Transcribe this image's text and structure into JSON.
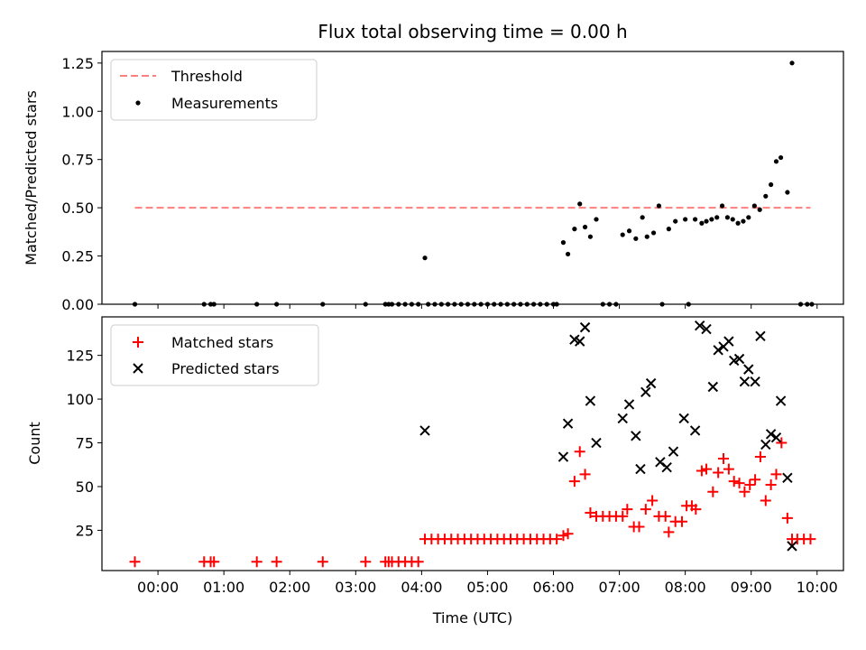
{
  "chart_data": [
    {
      "type": "scatter",
      "title": "Flux total observing time = 0.00 h",
      "xlabel": "",
      "ylabel": "Matched/Predicted stars",
      "xlim": [
        -0.85,
        10.4
      ],
      "ylim": [
        0,
        1.31
      ],
      "xticks": [
        0,
        1,
        2,
        3,
        4,
        5,
        6,
        7,
        8,
        9,
        10
      ],
      "xtick_labels": [],
      "yticks": [
        0.0,
        0.25,
        0.5,
        0.75,
        1.0,
        1.25
      ],
      "ytick_labels": [
        "0.00",
        "0.25",
        "0.50",
        "0.75",
        "1.00",
        "1.25"
      ],
      "legend": {
        "position": "top-left",
        "entries": [
          "Threshold",
          "Measurements"
        ]
      },
      "threshold": {
        "name": "Threshold",
        "color": "#ff7f7f",
        "style": "dashed",
        "x": [
          -0.35,
          9.9
        ],
        "y": 0.5
      },
      "series": [
        {
          "name": "Measurements",
          "color": "#000000",
          "marker": "dot",
          "points": [
            [
              -0.35,
              0
            ],
            [
              0.7,
              0
            ],
            [
              0.8,
              0
            ],
            [
              0.85,
              0
            ],
            [
              1.5,
              0
            ],
            [
              1.8,
              0
            ],
            [
              2.5,
              0
            ],
            [
              3.15,
              0
            ],
            [
              3.45,
              0
            ],
            [
              3.5,
              0
            ],
            [
              3.55,
              0
            ],
            [
              3.65,
              0
            ],
            [
              3.75,
              0
            ],
            [
              3.85,
              0
            ],
            [
              3.95,
              0
            ],
            [
              4.05,
              0.24
            ],
            [
              4.1,
              0
            ],
            [
              4.2,
              0
            ],
            [
              4.3,
              0
            ],
            [
              4.4,
              0
            ],
            [
              4.5,
              0
            ],
            [
              4.6,
              0
            ],
            [
              4.7,
              0
            ],
            [
              4.8,
              0
            ],
            [
              4.9,
              0
            ],
            [
              5.0,
              0
            ],
            [
              5.1,
              0
            ],
            [
              5.2,
              0
            ],
            [
              5.3,
              0
            ],
            [
              5.4,
              0
            ],
            [
              5.5,
              0
            ],
            [
              5.6,
              0
            ],
            [
              5.7,
              0
            ],
            [
              5.8,
              0
            ],
            [
              5.9,
              0
            ],
            [
              6.0,
              0
            ],
            [
              6.05,
              0
            ],
            [
              6.15,
              0.32
            ],
            [
              6.22,
              0.26
            ],
            [
              6.32,
              0.39
            ],
            [
              6.4,
              0.52
            ],
            [
              6.48,
              0.4
            ],
            [
              6.56,
              0.35
            ],
            [
              6.65,
              0.44
            ],
            [
              6.75,
              0
            ],
            [
              6.85,
              0
            ],
            [
              6.95,
              0
            ],
            [
              7.05,
              0.36
            ],
            [
              7.15,
              0.38
            ],
            [
              7.25,
              0.34
            ],
            [
              7.35,
              0.45
            ],
            [
              7.42,
              0.35
            ],
            [
              7.52,
              0.37
            ],
            [
              7.6,
              0.51
            ],
            [
              7.65,
              0
            ],
            [
              7.75,
              0.39
            ],
            [
              7.85,
              0.43
            ],
            [
              8.0,
              0.44
            ],
            [
              8.05,
              0
            ],
            [
              8.15,
              0.44
            ],
            [
              8.25,
              0.42
            ],
            [
              8.32,
              0.43
            ],
            [
              8.4,
              0.44
            ],
            [
              8.48,
              0.45
            ],
            [
              8.56,
              0.51
            ],
            [
              8.64,
              0.45
            ],
            [
              8.72,
              0.44
            ],
            [
              8.8,
              0.42
            ],
            [
              8.88,
              0.43
            ],
            [
              8.96,
              0.45
            ],
            [
              9.05,
              0.51
            ],
            [
              9.13,
              0.49
            ],
            [
              9.22,
              0.56
            ],
            [
              9.3,
              0.62
            ],
            [
              9.38,
              0.74
            ],
            [
              9.45,
              0.76
            ],
            [
              9.55,
              0.58
            ],
            [
              9.62,
              1.25
            ],
            [
              9.75,
              0
            ],
            [
              9.85,
              0
            ],
            [
              9.92,
              0
            ]
          ]
        }
      ]
    },
    {
      "type": "scatter",
      "title": "",
      "xlabel": "Time (UTC)",
      "ylabel": "Count",
      "xlim": [
        -0.85,
        10.4
      ],
      "ylim": [
        2,
        147
      ],
      "xticks": [
        0,
        1,
        2,
        3,
        4,
        5,
        6,
        7,
        8,
        9,
        10
      ],
      "xtick_labels": [
        "00:00",
        "01:00",
        "02:00",
        "03:00",
        "04:00",
        "05:00",
        "06:00",
        "07:00",
        "08:00",
        "09:00",
        "10:00"
      ],
      "yticks": [
        25,
        50,
        75,
        100,
        125
      ],
      "ytick_labels": [
        "25",
        "50",
        "75",
        "100",
        "125"
      ],
      "legend": {
        "position": "top-left",
        "entries": [
          "Matched stars",
          "Predicted stars"
        ]
      },
      "series": [
        {
          "name": "Matched stars",
          "color": "#ff0000",
          "marker": "plus",
          "points": [
            [
              -0.35,
              7
            ],
            [
              0.7,
              7
            ],
            [
              0.8,
              7
            ],
            [
              0.85,
              7
            ],
            [
              1.5,
              7
            ],
            [
              1.8,
              7
            ],
            [
              2.5,
              7
            ],
            [
              3.15,
              7
            ],
            [
              3.45,
              7
            ],
            [
              3.5,
              7
            ],
            [
              3.55,
              7
            ],
            [
              3.65,
              7
            ],
            [
              3.75,
              7
            ],
            [
              3.85,
              7
            ],
            [
              3.95,
              7
            ],
            [
              4.05,
              20
            ],
            [
              4.15,
              20
            ],
            [
              4.25,
              20
            ],
            [
              4.35,
              20
            ],
            [
              4.45,
              20
            ],
            [
              4.55,
              20
            ],
            [
              4.65,
              20
            ],
            [
              4.75,
              20
            ],
            [
              4.85,
              20
            ],
            [
              4.95,
              20
            ],
            [
              5.05,
              20
            ],
            [
              5.15,
              20
            ],
            [
              5.25,
              20
            ],
            [
              5.35,
              20
            ],
            [
              5.45,
              20
            ],
            [
              5.55,
              20
            ],
            [
              5.65,
              20
            ],
            [
              5.75,
              20
            ],
            [
              5.85,
              20
            ],
            [
              5.95,
              20
            ],
            [
              6.05,
              20
            ],
            [
              6.15,
              22
            ],
            [
              6.22,
              23
            ],
            [
              6.32,
              53
            ],
            [
              6.4,
              70
            ],
            [
              6.48,
              57
            ],
            [
              6.56,
              35
            ],
            [
              6.65,
              33
            ],
            [
              6.75,
              33
            ],
            [
              6.85,
              33
            ],
            [
              6.95,
              33
            ],
            [
              7.05,
              33
            ],
            [
              7.12,
              37
            ],
            [
              7.22,
              27
            ],
            [
              7.3,
              27
            ],
            [
              7.4,
              37
            ],
            [
              7.5,
              42
            ],
            [
              7.6,
              33
            ],
            [
              7.7,
              33
            ],
            [
              7.75,
              24
            ],
            [
              7.85,
              30
            ],
            [
              7.95,
              30
            ],
            [
              8.02,
              39
            ],
            [
              8.1,
              39
            ],
            [
              8.16,
              37
            ],
            [
              8.25,
              59
            ],
            [
              8.32,
              60
            ],
            [
              8.42,
              47
            ],
            [
              8.5,
              58
            ],
            [
              8.58,
              66
            ],
            [
              8.66,
              60
            ],
            [
              8.74,
              53
            ],
            [
              8.82,
              52
            ],
            [
              8.9,
              47
            ],
            [
              8.98,
              51
            ],
            [
              9.06,
              54
            ],
            [
              9.14,
              67
            ],
            [
              9.22,
              42
            ],
            [
              9.3,
              51
            ],
            [
              9.38,
              57
            ],
            [
              9.46,
              75
            ],
            [
              9.55,
              32
            ],
            [
              9.62,
              20
            ],
            [
              9.7,
              20
            ],
            [
              9.8,
              20
            ],
            [
              9.9,
              20
            ]
          ]
        },
        {
          "name": "Predicted stars",
          "color": "#000000",
          "marker": "x",
          "points": [
            [
              4.05,
              82
            ],
            [
              6.15,
              67
            ],
            [
              6.22,
              86
            ],
            [
              6.32,
              134
            ],
            [
              6.4,
              133
            ],
            [
              6.48,
              141
            ],
            [
              6.56,
              99
            ],
            [
              6.65,
              75
            ],
            [
              7.05,
              89
            ],
            [
              7.15,
              97
            ],
            [
              7.25,
              79
            ],
            [
              7.32,
              60
            ],
            [
              7.4,
              104
            ],
            [
              7.48,
              109
            ],
            [
              7.62,
              64
            ],
            [
              7.72,
              61
            ],
            [
              7.82,
              70
            ],
            [
              7.98,
              89
            ],
            [
              8.15,
              82
            ],
            [
              8.22,
              142
            ],
            [
              8.32,
              140
            ],
            [
              8.42,
              107
            ],
            [
              8.5,
              128
            ],
            [
              8.58,
              130
            ],
            [
              8.66,
              133
            ],
            [
              8.74,
              122
            ],
            [
              8.82,
              123
            ],
            [
              8.9,
              110
            ],
            [
              8.96,
              117
            ],
            [
              9.06,
              110
            ],
            [
              9.14,
              136
            ],
            [
              9.22,
              74
            ],
            [
              9.3,
              80
            ],
            [
              9.38,
              78
            ],
            [
              9.45,
              99
            ],
            [
              9.55,
              55
            ],
            [
              9.62,
              16
            ]
          ]
        }
      ]
    }
  ]
}
